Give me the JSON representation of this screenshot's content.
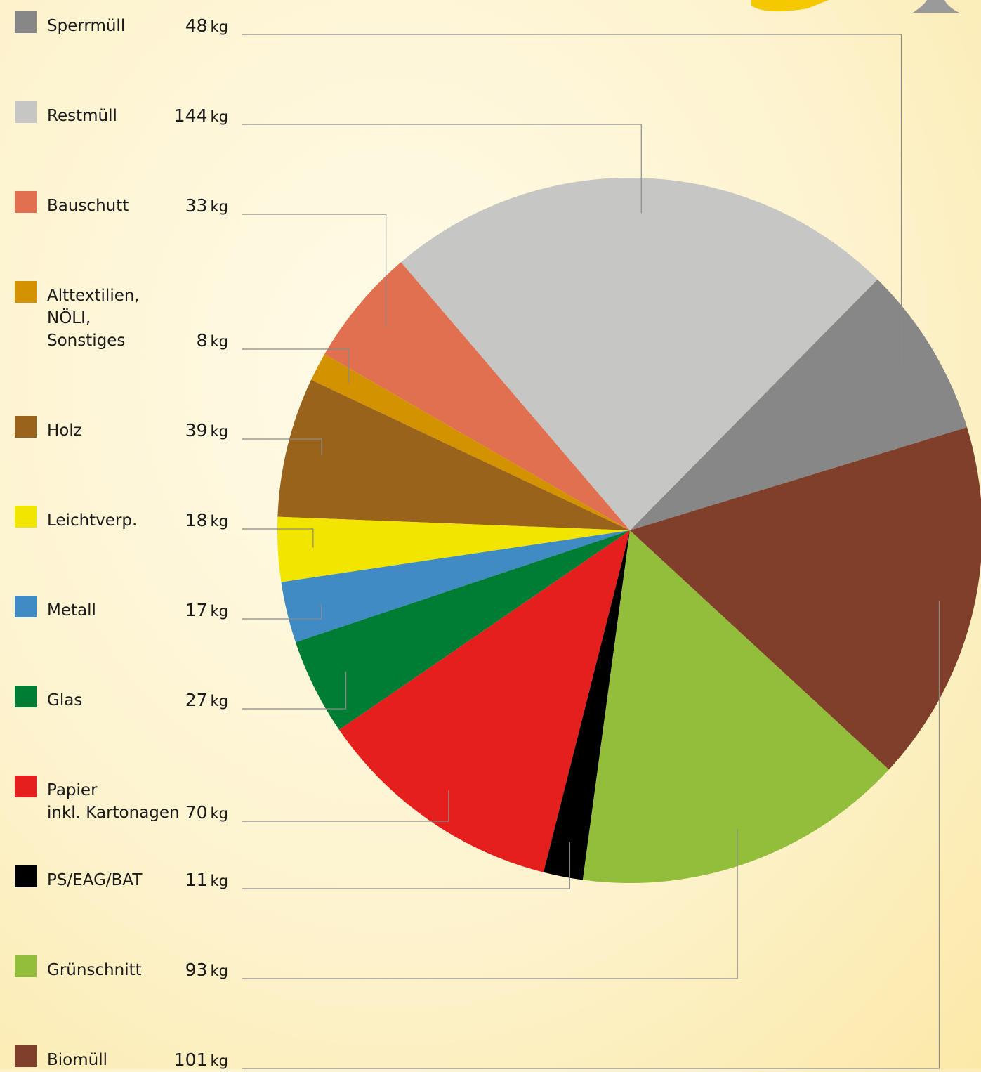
{
  "chart_data": {
    "type": "pie",
    "categories": [
      "Sperrmüll",
      "Restmüll",
      "Bauschutt",
      "Alttextilien,\nNÖLI,\nSonstiges",
      "Holz",
      "Leichtverp.",
      "Metall",
      "Glas",
      "Papier\ninkl. Kartonagen",
      "PS/EAG/BAT",
      "Grünschnitt",
      "Biomüll"
    ],
    "values": [
      48,
      144,
      33,
      8,
      39,
      18,
      17,
      27,
      70,
      11,
      93,
      101
    ],
    "unit": "kg",
    "colors": [
      "#868786",
      "#c6c6c4",
      "#e0704f",
      "#d39300",
      "#9a631b",
      "#f2e500",
      "#418bc4",
      "#007d35",
      "#e41f1e",
      "#000000",
      "#92be3b",
      "#7f3f2a"
    ]
  }
}
